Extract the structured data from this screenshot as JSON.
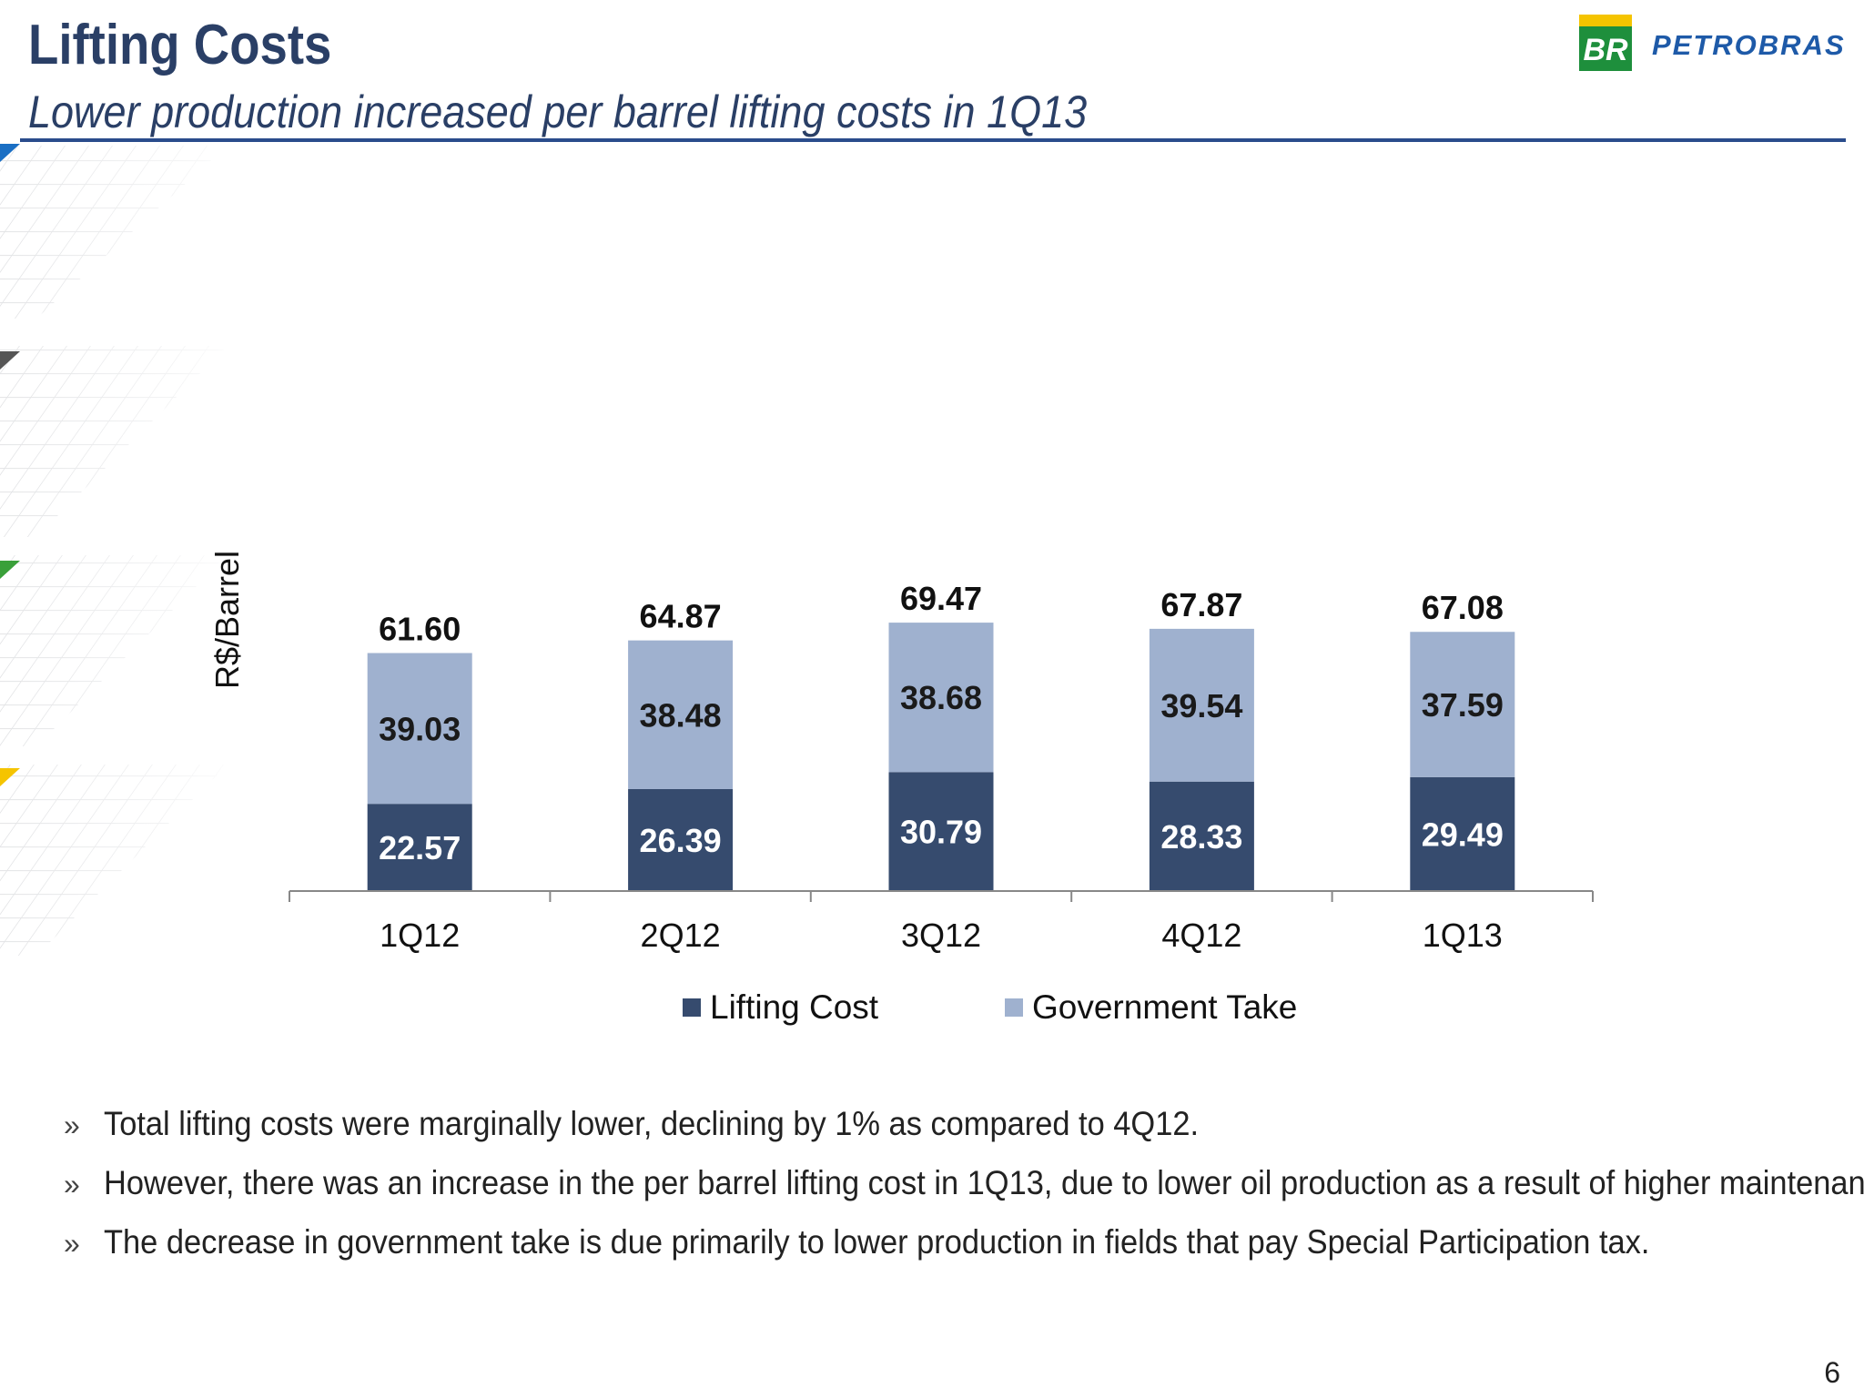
{
  "header": {
    "title": "Lifting Costs",
    "subtitle": "Lower production increased per barrel lifting costs in 1Q13",
    "logo_mark": "BR",
    "logo_text": "PETROBRAS"
  },
  "chart_data": {
    "type": "bar",
    "stacked": true,
    "categories": [
      "1Q12",
      "2Q12",
      "3Q12",
      "4Q12",
      "1Q13"
    ],
    "series": [
      {
        "name": "Lifting Cost",
        "values": [
          22.57,
          26.39,
          30.79,
          28.33,
          29.49
        ],
        "color": "#364b6e"
      },
      {
        "name": "Government Take",
        "values": [
          39.03,
          38.48,
          38.68,
          39.54,
          37.59
        ],
        "color": "#9fb1cf"
      }
    ],
    "totals": [
      "61.60",
      "64.87",
      "69.47",
      "67.87",
      "67.08"
    ],
    "ylabel": "R$/Barrel",
    "xlabel": "",
    "ylim": [
      0,
      72
    ],
    "legend_position": "bottom",
    "grid": false
  },
  "bullets": [
    "Total lifting costs were marginally lower, declining by 1% as compared to 4Q12.",
    "However, there was an increase in the per barrel lifting cost in 1Q13, due to lower oil production as a result of higher maintenance.",
    "The decrease in government take is due primarily to lower production in fields that pay Special Participation tax."
  ],
  "bullet_marker": "»",
  "page_number": "6",
  "colors": {
    "title": "#2a3f66",
    "rule": "#2a4c8c",
    "lifting_cost": "#364b6e",
    "government_take": "#9fb1cf",
    "logo_green": "#1e8f3c",
    "logo_yellow": "#f5c400"
  }
}
